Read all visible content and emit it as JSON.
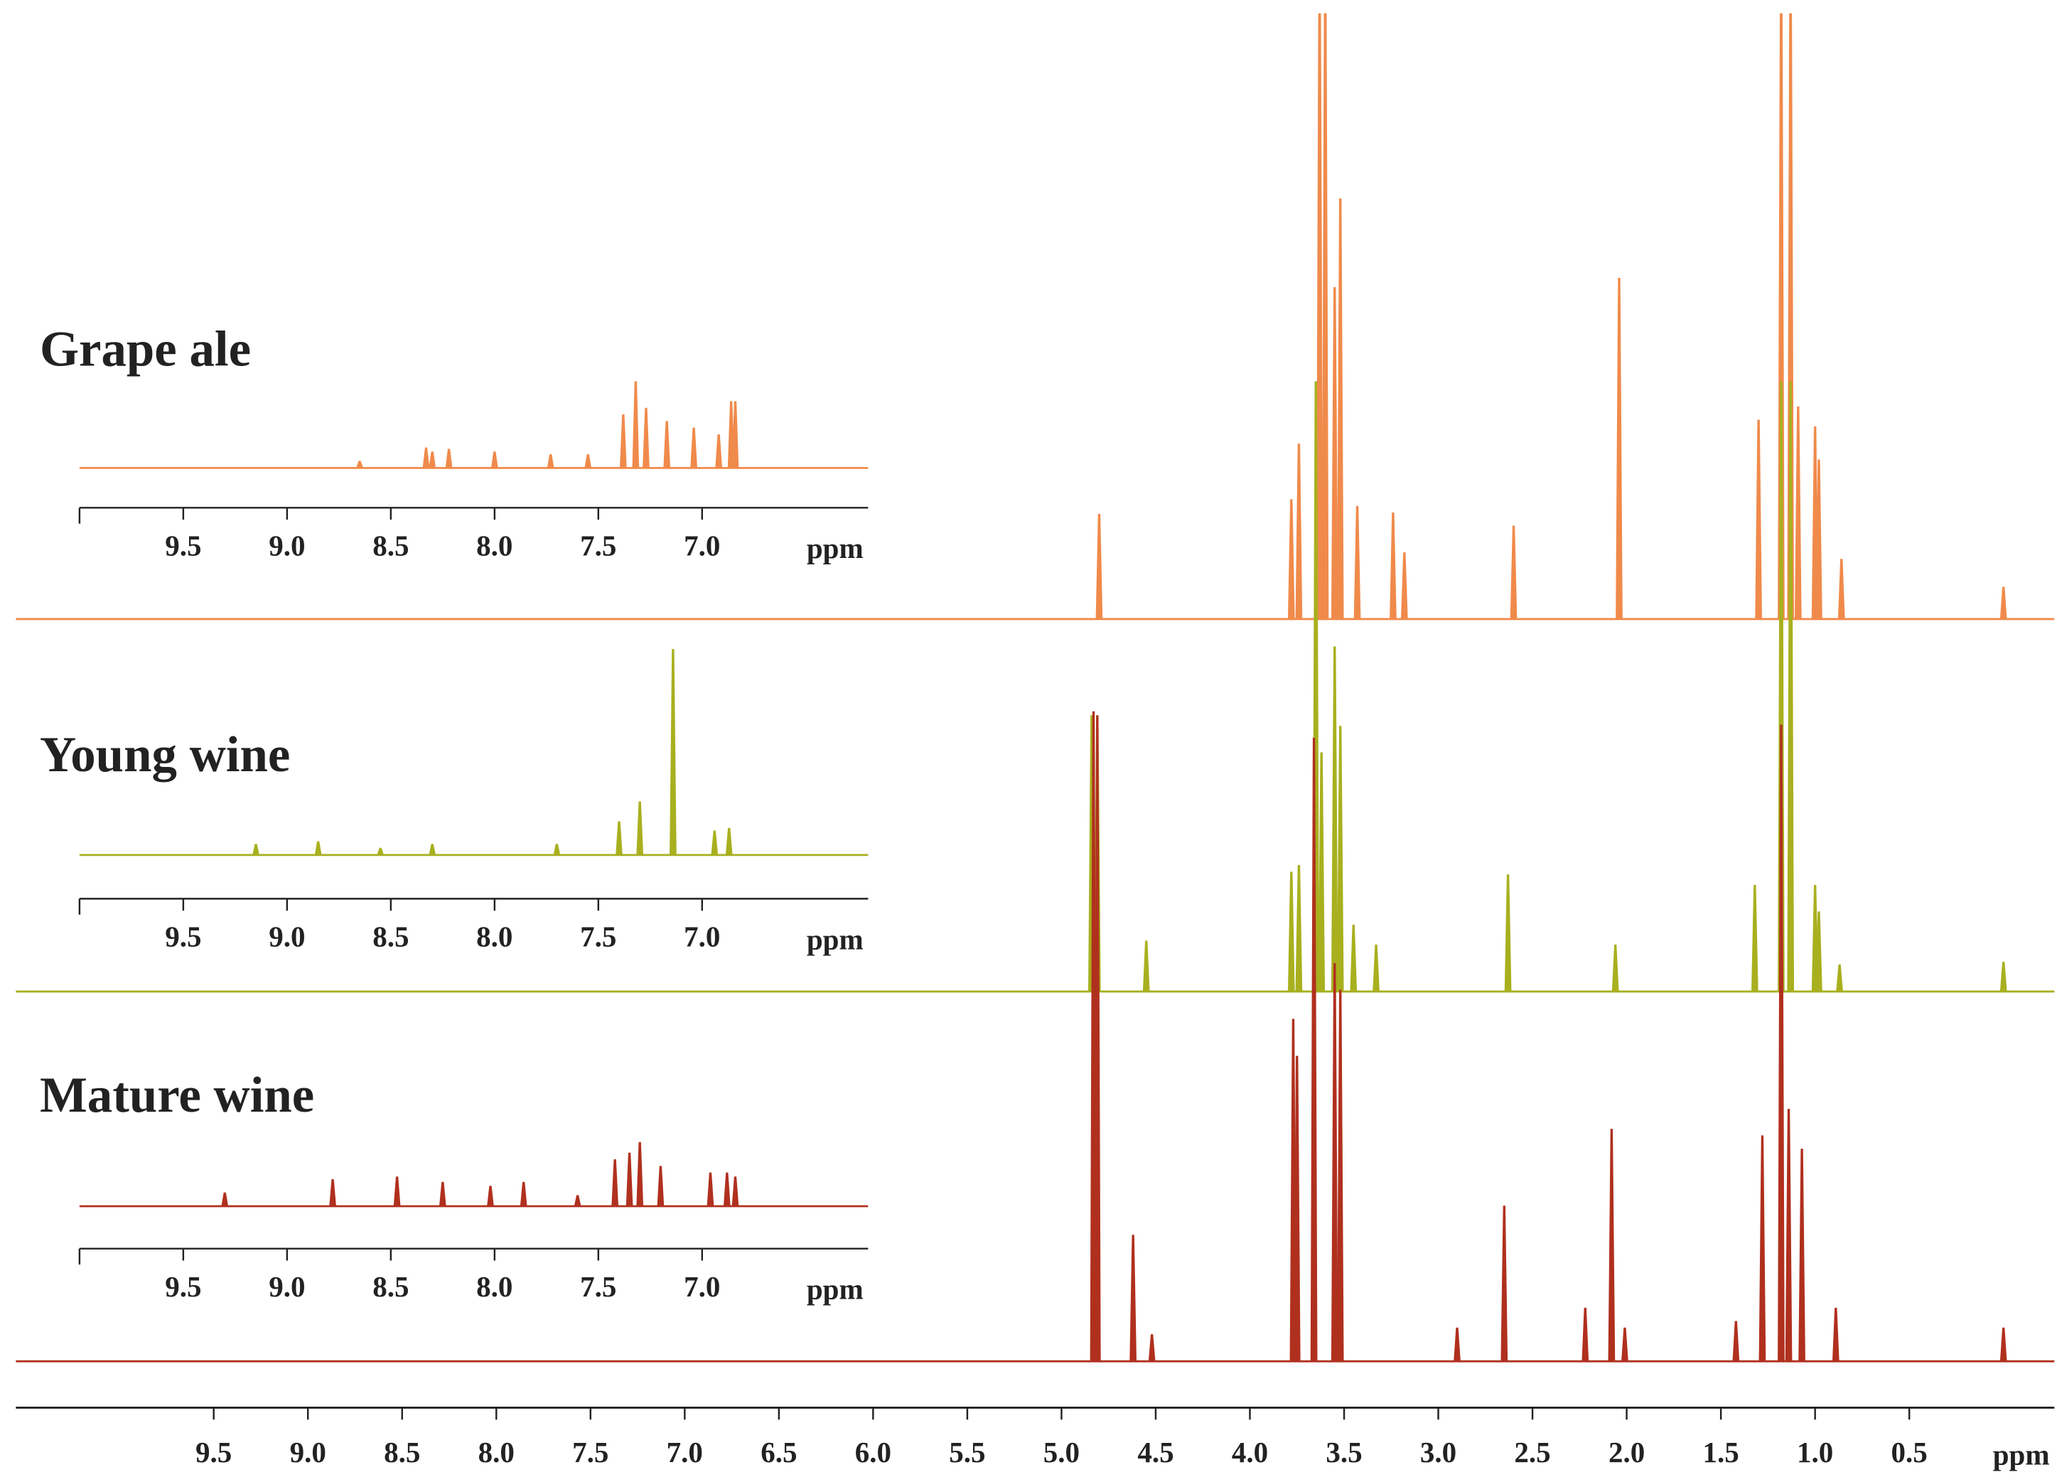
{
  "chart_data": {
    "type": "spectrum",
    "xlabel": "ppm",
    "xlim": [
      10.55,
      -0.27
    ],
    "xticks": [
      9.5,
      {
        "value": 9,
        "label": "9.0"
      },
      8.5,
      {
        "value": 8,
        "label": "8.0"
      },
      7.5,
      {
        "value": 7,
        "label": "7.0"
      },
      6.5,
      {
        "value": 6,
        "label": "6.0"
      },
      5.5,
      {
        "value": 5,
        "label": "5.0"
      },
      4.5,
      {
        "value": 4,
        "label": "4.0"
      },
      3.5,
      {
        "value": 3,
        "label": "3.0"
      },
      2.5,
      {
        "value": 2,
        "label": "2.0"
      },
      1.5,
      {
        "value": 1,
        "label": "1.0"
      },
      0.5
    ],
    "series": [
      {
        "name": "Grape ale",
        "color": "#f08a4b",
        "x": [
          4.8,
          3.78,
          3.74,
          3.63,
          3.6,
          3.55,
          3.52,
          3.43,
          3.24,
          3.18,
          2.6,
          2.04,
          1.3,
          1.18,
          1.13,
          1.09,
          1.0,
          0.98,
          0.86,
          0.0
        ],
        "values": [
          79,
          90,
          132,
          500,
          500,
          250,
          317,
          85,
          80,
          50,
          70,
          257,
          150,
          500,
          500,
          160,
          145,
          120,
          45,
          24
        ],
        "inset": {
          "xlabel": "ppm",
          "xlim": [
            10.0,
            6.2
          ],
          "xticks": [
            9.5,
            {
              "value": 9,
              "label": "9.0"
            },
            8.5,
            {
              "value": 8,
              "label": "8.0"
            },
            7.5,
            {
              "value": 7,
              "label": "7.0"
            }
          ],
          "x": [
            8.65,
            8.33,
            8.3,
            8.22,
            8.0,
            7.73,
            7.55,
            7.38,
            7.32,
            7.27,
            7.17,
            7.04,
            6.92,
            6.86,
            6.84
          ],
          "values": [
            5,
            15,
            12,
            14,
            12,
            10,
            10,
            40,
            65,
            45,
            35,
            30,
            25,
            50,
            50
          ]
        }
      },
      {
        "name": "Young wine",
        "color": "#a8b01f",
        "x": [
          4.84,
          4.81,
          4.55,
          3.78,
          3.74,
          3.65,
          3.62,
          3.55,
          3.52,
          3.45,
          3.33,
          2.63,
          2.06,
          1.32,
          1.18,
          1.13,
          1.0,
          0.98,
          0.87,
          0.0
        ],
        "values": [
          208,
          208,
          38,
          90,
          95,
          460,
          180,
          260,
          200,
          50,
          35,
          88,
          35,
          80,
          460,
          460,
          80,
          60,
          20,
          22
        ],
        "inset": {
          "xlabel": "ppm",
          "xlim": [
            10.0,
            6.2
          ],
          "xticks": [
            9.5,
            {
              "value": 9,
              "label": "9.0"
            },
            8.5,
            {
              "value": 8,
              "label": "8.0"
            },
            7.5,
            {
              "value": 7,
              "label": "7.0"
            }
          ],
          "x": [
            9.15,
            8.85,
            8.55,
            8.3,
            7.7,
            7.4,
            7.3,
            7.14,
            6.94,
            6.87
          ],
          "values": [
            8,
            10,
            5,
            8,
            8,
            25,
            40,
            155,
            18,
            20
          ]
        }
      },
      {
        "name": "Mature wine",
        "color": "#b0301e",
        "x": [
          4.83,
          4.81,
          4.62,
          4.52,
          3.77,
          3.75,
          3.66,
          3.55,
          3.52,
          2.9,
          2.65,
          2.22,
          2.08,
          2.01,
          1.42,
          1.28,
          1.18,
          1.14,
          1.07,
          0.89,
          0.0
        ],
        "values": [
          490,
          487,
          95,
          20,
          258,
          230,
          470,
          300,
          280,
          25,
          117,
          40,
          175,
          25,
          30,
          170,
          480,
          190,
          160,
          40,
          25
        ],
        "inset": {
          "xlabel": "ppm",
          "xlim": [
            10.0,
            6.2
          ],
          "xticks": [
            9.5,
            {
              "value": 9,
              "label": "9.0"
            },
            8.5,
            {
              "value": 8,
              "label": "8.0"
            },
            7.5,
            {
              "value": 7,
              "label": "7.0"
            }
          ],
          "x": [
            9.3,
            8.78,
            8.47,
            8.25,
            8.02,
            7.86,
            7.6,
            7.42,
            7.35,
            7.3,
            7.2,
            6.96,
            6.88,
            6.84
          ],
          "values": [
            10,
            20,
            22,
            18,
            15,
            18,
            8,
            35,
            40,
            48,
            30,
            25,
            25,
            22
          ]
        }
      }
    ]
  }
}
